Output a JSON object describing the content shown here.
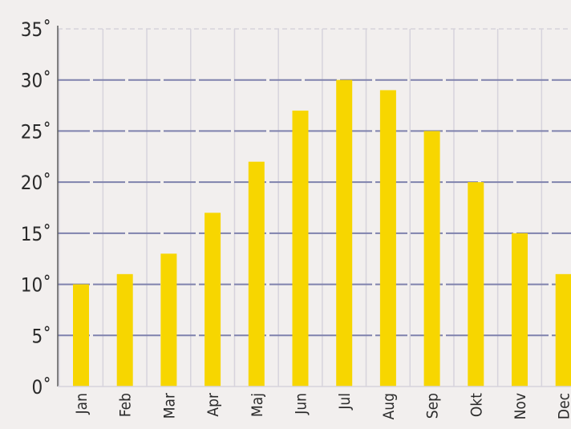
{
  "chart_data": {
    "type": "bar",
    "categories": [
      "Jan",
      "Feb",
      "Mar",
      "Apr",
      "Maj",
      "Jun",
      "Jul",
      "Aug",
      "Sep",
      "Okt",
      "Nov",
      "Dec"
    ],
    "values": [
      10,
      11,
      13,
      17,
      22,
      27,
      30,
      29,
      25,
      20,
      15,
      11
    ],
    "ylim": [
      0,
      35
    ],
    "yticks": [
      0,
      5,
      10,
      15,
      20,
      25,
      30,
      35
    ],
    "ytick_labels": [
      "0˚",
      "5˚",
      "10˚",
      "15˚",
      "20˚",
      "25˚",
      "30˚",
      "35˚"
    ],
    "grid": true,
    "colors": {
      "bar": "#f7d600",
      "grid_major": "#7f82ad",
      "grid_minor": "#d6d3dc",
      "axis": "#5a5a5a",
      "background": "#f2efee"
    }
  }
}
